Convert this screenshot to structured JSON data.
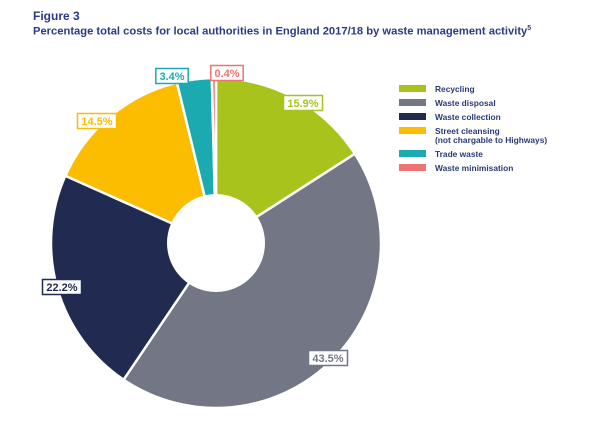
{
  "figure": {
    "number": "Figure 3",
    "title": "Percentage total costs for local authorities in England 2017/18 by waste management activity",
    "footnote_ref": "5"
  },
  "chart_data": {
    "type": "pie",
    "donut": true,
    "categories": [
      "Recycling",
      "Waste disposal",
      "Waste collection",
      "Street cleansing\n(not chargable to Highways)",
      "Trade waste",
      "Waste minimisation"
    ],
    "values": [
      15.9,
      43.5,
      22.2,
      14.5,
      3.4,
      0.4
    ],
    "value_labels": [
      "15.9%",
      "43.5%",
      "22.2%",
      "14.5%",
      "3.4%",
      "0.4%"
    ],
    "colors": [
      "#a8c31c",
      "#737685",
      "#212b52",
      "#fcbd00",
      "#1aaab0",
      "#ed7473"
    ],
    "legend_position": "right"
  }
}
